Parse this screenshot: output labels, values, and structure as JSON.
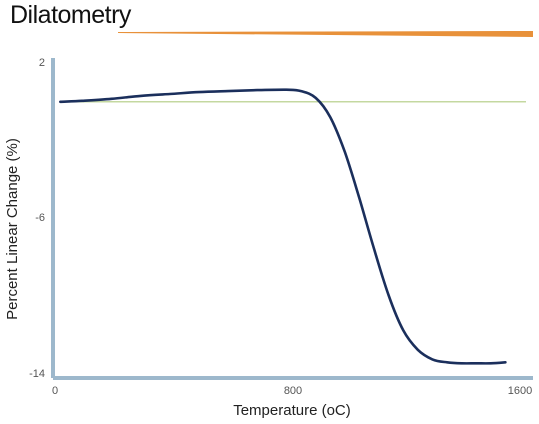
{
  "page": {
    "title": "Dilatometry"
  },
  "colors": {
    "accent": "#e8913a",
    "axis": "#9db8cc",
    "curve": "#1b2f5c",
    "reference": "#c4d8a0"
  },
  "chart_data": {
    "type": "line",
    "title": "",
    "xlabel": "Temperature (oC)",
    "ylabel": "Percent Linear Change (%)",
    "xlim": [
      0,
      1600
    ],
    "ylim": [
      -14,
      2
    ],
    "x_ticks": [
      "0",
      "800",
      "1600"
    ],
    "y_ticks": [
      "2",
      "-6",
      "-14"
    ],
    "grid": false,
    "series": [
      {
        "x": [
          25,
          100,
          200,
          300,
          400,
          500,
          600,
          700,
          800,
          850,
          900,
          950,
          1000,
          1050,
          1100,
          1150,
          1200,
          1250,
          1300,
          1350,
          1400,
          1450,
          1500,
          1550
        ],
        "y": [
          0.0,
          0.05,
          0.15,
          0.3,
          0.4,
          0.5,
          0.55,
          0.6,
          0.62,
          0.55,
          0.2,
          -0.8,
          -2.6,
          -5.0,
          -7.6,
          -10.0,
          -11.8,
          -12.8,
          -13.3,
          -13.45,
          -13.5,
          -13.5,
          -13.5,
          -13.45
        ]
      },
      {
        "x": [
          25,
          1600
        ],
        "y": [
          0,
          0
        ]
      }
    ]
  }
}
